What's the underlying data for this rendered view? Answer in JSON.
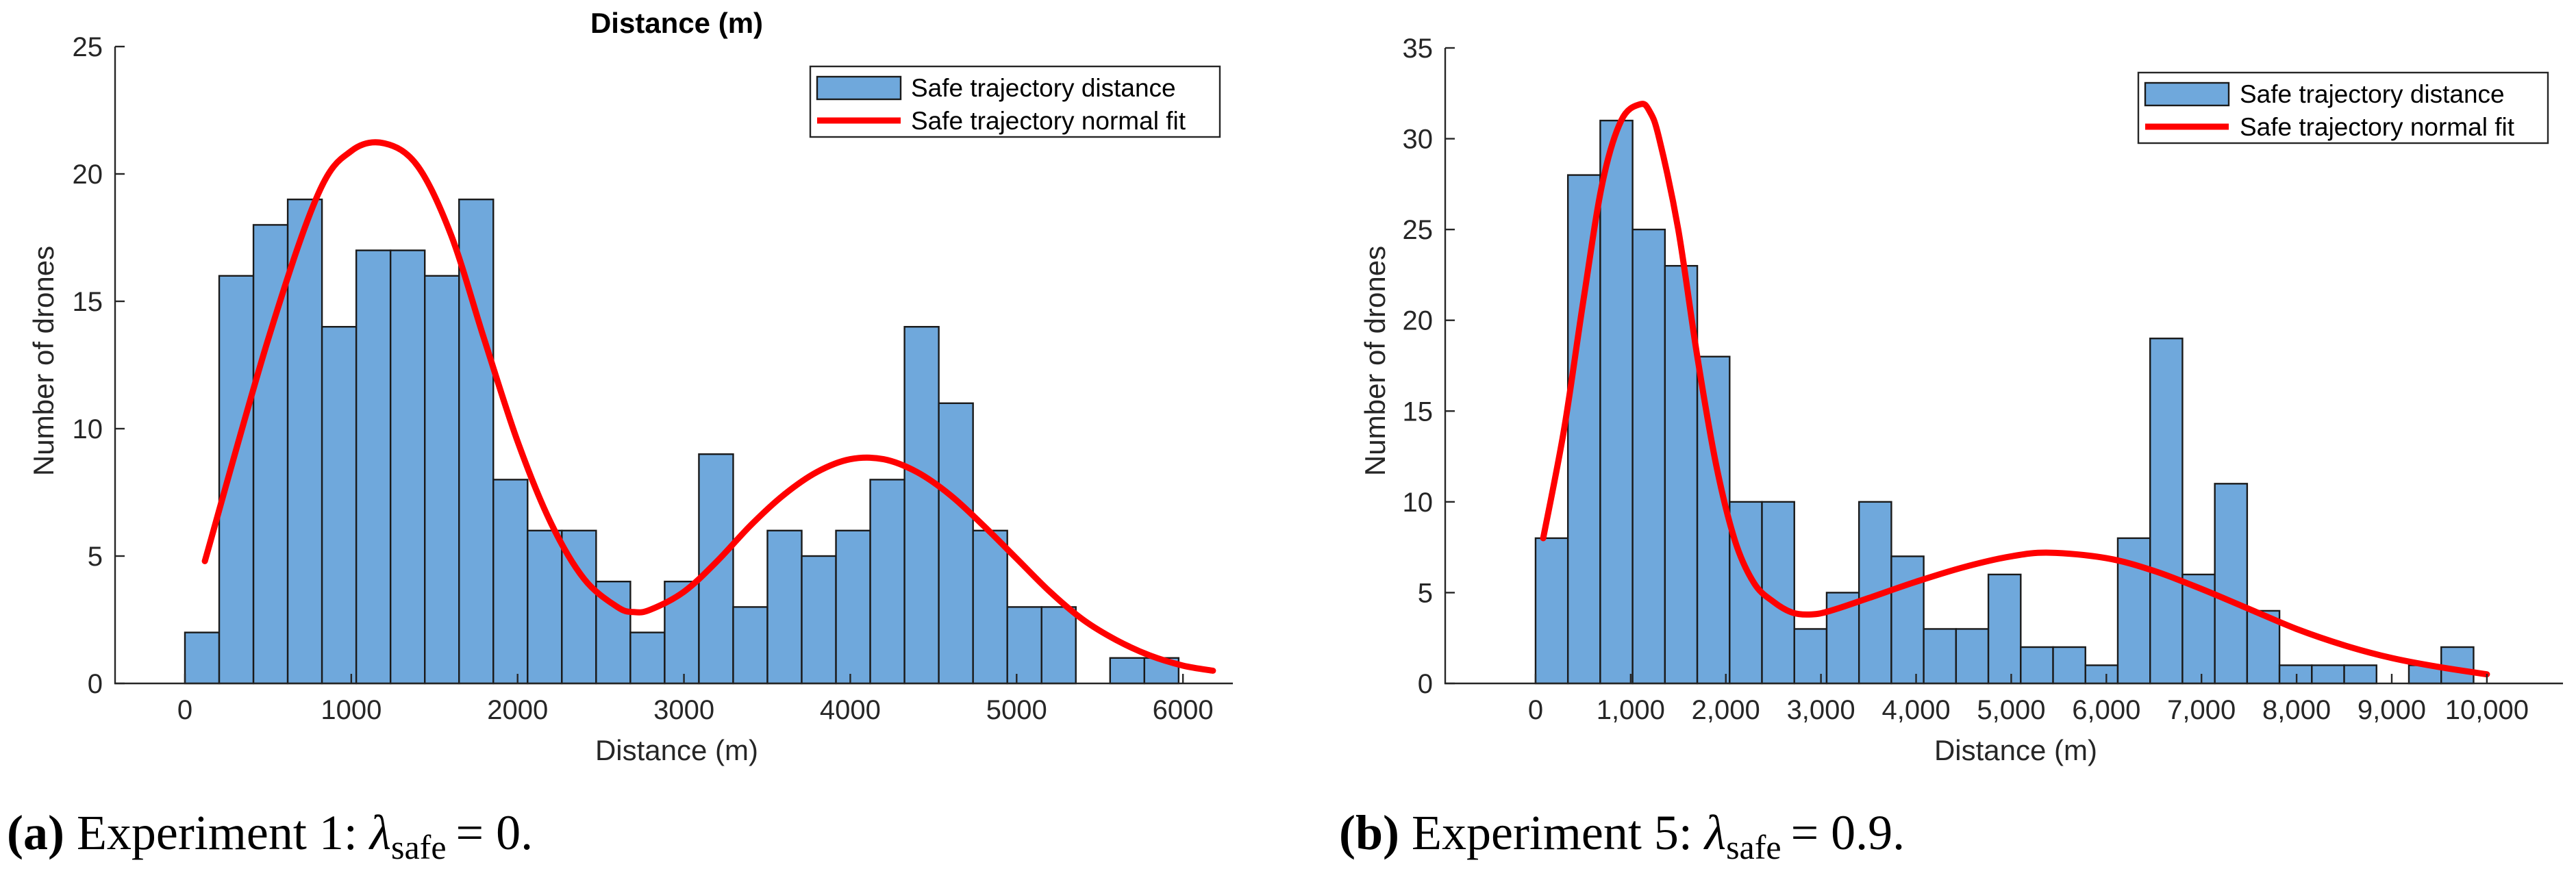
{
  "colors": {
    "bar": "#6fa8dc",
    "fit": "#ff0000"
  },
  "chart_data": [
    {
      "type": "bar",
      "title": "Distance (m)",
      "xlabel": "Distance (m)",
      "ylabel": "Number of drones",
      "xlim": [
        -420,
        6300
      ],
      "ylim": [
        0,
        25
      ],
      "xticks": [
        0,
        1000,
        2000,
        3000,
        4000,
        5000,
        6000
      ],
      "xtick_labels": [
        "0",
        "1000",
        "2000",
        "3000",
        "4000",
        "5000",
        "6000"
      ],
      "yticks": [
        0,
        5,
        10,
        15,
        20,
        25
      ],
      "ytick_labels": [
        "0",
        "5",
        "10",
        "15",
        "20",
        "25"
      ],
      "bin_start": 0,
      "bin_width": 206,
      "values": [
        2,
        16,
        18,
        19,
        14,
        17,
        17,
        16,
        19,
        8,
        6,
        6,
        4,
        2,
        4,
        9,
        3,
        6,
        5,
        6,
        8,
        14,
        11,
        6,
        3,
        3,
        0,
        1,
        1
      ],
      "fit_x": [
        120,
        500,
        800,
        1000,
        1200,
        1400,
        1600,
        1800,
        2000,
        2200,
        2400,
        2600,
        2700,
        2800,
        3000,
        3200,
        3400,
        3600,
        3800,
        4000,
        4200,
        4400,
        4600,
        4800,
        5000,
        5200,
        5400,
        5600,
        5800,
        6000,
        6180
      ],
      "fit_y": [
        4.8,
        13.5,
        19.2,
        20.9,
        21.2,
        20.3,
        17.6,
        13.5,
        9.5,
        6.3,
        4.1,
        3.0,
        2.8,
        2.9,
        3.6,
        4.8,
        6.2,
        7.4,
        8.3,
        8.8,
        8.8,
        8.3,
        7.4,
        6.2,
        4.9,
        3.6,
        2.5,
        1.7,
        1.1,
        0.7,
        0.5
      ],
      "legend": {
        "position": "top-right",
        "entries": [
          "Safe trajectory distance",
          "Safe trajectory normal fit"
        ]
      },
      "caption": {
        "label": "(a)",
        "text": "Experiment 1:",
        "math": "λ",
        "math_sub": "safe",
        "math_rhs": "= 0."
      }
    },
    {
      "type": "bar",
      "title": "",
      "xlabel": "Distance (m)",
      "ylabel": "Number of drones",
      "xlim": [
        -950,
        10800
      ],
      "ylim": [
        0,
        35
      ],
      "xticks": [
        0,
        1000,
        2000,
        3000,
        4000,
        5000,
        6000,
        7000,
        8000,
        9000,
        10000
      ],
      "xtick_labels": [
        "0",
        "1,000",
        "2,000",
        "3,000",
        "4,000",
        "5,000",
        "6,000",
        "7,000",
        "8,000",
        "9,000",
        "10,000"
      ],
      "yticks": [
        0,
        5,
        10,
        15,
        20,
        25,
        30,
        35
      ],
      "ytick_labels": [
        "0",
        "5",
        "10",
        "15",
        "20",
        "25",
        "30",
        "35"
      ],
      "bin_start": 0,
      "bin_width": 340,
      "values": [
        8,
        28,
        31,
        25,
        23,
        18,
        10,
        10,
        3,
        5,
        10,
        7,
        3,
        3,
        6,
        2,
        2,
        1,
        8,
        19,
        6,
        11,
        4,
        1,
        1,
        1,
        0,
        1,
        2
      ],
      "fit_x": [
        80,
        300,
        500,
        700,
        900,
        1100,
        1200,
        1300,
        1500,
        1700,
        1900,
        2100,
        2300,
        2500,
        2700,
        2900,
        3100,
        3500,
        4000,
        4500,
        5000,
        5400,
        6000,
        6500,
        7000,
        7500,
        8000,
        8500,
        9000,
        9500,
        10000
      ],
      "fit_y": [
        8.0,
        14.0,
        21.0,
        27.5,
        31.0,
        31.9,
        31.5,
        30.0,
        25.0,
        18.0,
        12.0,
        7.8,
        5.5,
        4.5,
        3.9,
        3.8,
        4.0,
        4.7,
        5.6,
        6.4,
        7.0,
        7.2,
        6.9,
        6.2,
        5.2,
        4.1,
        3.0,
        2.1,
        1.4,
        0.9,
        0.5
      ],
      "legend": {
        "position": "top-right",
        "entries": [
          "Safe trajectory distance",
          "Safe trajectory normal fit"
        ]
      },
      "caption": {
        "label": "(b)",
        "text": "Experiment 5:",
        "math": "λ",
        "math_sub": "safe",
        "math_rhs": "= 0.9."
      }
    }
  ]
}
